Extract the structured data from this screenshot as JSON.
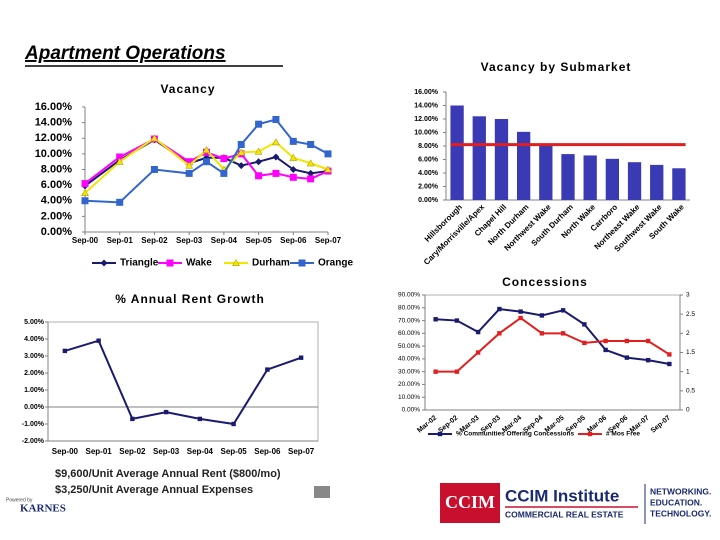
{
  "header": {
    "title": "Apartment Operations"
  },
  "chart_data": [
    {
      "type": "line",
      "title": "Vacancy",
      "x": [
        0,
        1,
        2,
        3,
        3.5,
        4,
        4.5,
        5,
        5.5,
        6,
        6.5,
        7
      ],
      "xlim": [
        0,
        7
      ],
      "xticks": [
        {
          "value": 0,
          "label": "Sep-00"
        },
        {
          "value": 1,
          "label": "Sep-01"
        },
        {
          "value": 2,
          "label": "Sep-02"
        },
        {
          "value": 3,
          "label": "Sep-03"
        },
        {
          "value": 4,
          "label": "Sep-04"
        },
        {
          "value": 5,
          "label": "Sep-05"
        },
        {
          "value": 6,
          "label": "Sep-06"
        },
        {
          "value": 7,
          "label": "Sep-07"
        }
      ],
      "ylim": [
        0,
        16
      ],
      "yticks": [
        {
          "value": 0,
          "label": "0.00%"
        },
        {
          "value": 2,
          "label": "2.00%"
        },
        {
          "value": 4,
          "label": "4.00%"
        },
        {
          "value": 6,
          "label": "6.00%"
        },
        {
          "value": 8,
          "label": "8.00%"
        },
        {
          "value": 10,
          "label": "10.00%"
        },
        {
          "value": 12,
          "label": "12.00%"
        },
        {
          "value": 14,
          "label": "14.00%"
        },
        {
          "value": 16,
          "label": "16.00%"
        }
      ],
      "series": [
        {
          "name": "Triangle",
          "color": "#1a1a6e",
          "marker": "diamond",
          "values": [
            5.9,
            9.2,
            11.8,
            8.8,
            9.5,
            9.5,
            8.5,
            9.0,
            9.6,
            8.0,
            7.5,
            7.8
          ]
        },
        {
          "name": "Wake",
          "color": "#ff00ff",
          "marker": "square",
          "values": [
            6.2,
            9.6,
            11.9,
            9.0,
            10.2,
            9.4,
            10.0,
            7.2,
            7.5,
            7.0,
            6.8,
            7.8
          ]
        },
        {
          "name": "Durham",
          "color": "#f2e600",
          "marker": "triangle",
          "values": [
            5.0,
            9.0,
            12.0,
            8.5,
            10.5,
            8.0,
            10.2,
            10.3,
            11.5,
            9.5,
            8.8,
            8.0
          ]
        },
        {
          "name": "Orange",
          "color": "#3366cc",
          "marker": "square",
          "values": [
            4.0,
            3.8,
            8.0,
            7.5,
            9.0,
            7.5,
            11.2,
            13.8,
            14.4,
            11.6,
            11.2,
            10.0
          ]
        }
      ]
    },
    {
      "type": "bar",
      "title": "Vacancy by Submarket",
      "categories": [
        "Hillsborough",
        "Cary/Morrisville/Apex",
        "Chapel Hill",
        "North Durham",
        "Northwest Wake",
        "South Durham",
        "North Wake",
        "Carrboro",
        "Northeast Wake",
        "Southwest Wake",
        "South Wake"
      ],
      "values": [
        14.0,
        12.4,
        12.0,
        10.1,
        8.1,
        6.8,
        6.6,
        6.1,
        5.6,
        5.2,
        4.7
      ],
      "color": "#3a3ab4",
      "reference_line": {
        "value": 8.2,
        "color": "#e02020"
      },
      "ylim": [
        0,
        16
      ],
      "yticks": [
        {
          "value": 0,
          "label": "0.00%"
        },
        {
          "value": 2,
          "label": "2.00%"
        },
        {
          "value": 4,
          "label": "4.00%"
        },
        {
          "value": 6,
          "label": "6.00%"
        },
        {
          "value": 8,
          "label": "8.00%"
        },
        {
          "value": 10,
          "label": "10.00%"
        },
        {
          "value": 12,
          "label": "12.00%"
        },
        {
          "value": 14,
          "label": "14.00%"
        },
        {
          "value": 16,
          "label": "16.00%"
        }
      ]
    },
    {
      "type": "line",
      "title": "% Annual Rent Growth",
      "categories": [
        "Sep-00",
        "Sep-01",
        "Sep-02",
        "Sep-03",
        "Sep-04",
        "Sep-05",
        "Sep-06",
        "Sep-07"
      ],
      "ylim": [
        -2,
        5
      ],
      "yticks": [
        {
          "value": -2,
          "label": "-2.00%"
        },
        {
          "value": -1,
          "label": "-1.00%"
        },
        {
          "value": 0,
          "label": "0.00%"
        },
        {
          "value": 1,
          "label": "1.00%"
        },
        {
          "value": 2,
          "label": "2.00%"
        },
        {
          "value": 3,
          "label": "3.00%"
        },
        {
          "value": 4,
          "label": "4.00%"
        },
        {
          "value": 5,
          "label": "5.00%"
        }
      ],
      "series": [
        {
          "color": "#1a1a6e",
          "marker": "square",
          "values": [
            3.3,
            3.9,
            -0.7,
            -0.3,
            -0.7,
            -1.0,
            2.2,
            2.9
          ]
        }
      ]
    },
    {
      "type": "line",
      "title": "Concessions",
      "categories": [
        "Mar-02",
        "Sep-02",
        "Mar-03",
        "Sep-03",
        "Mar-04",
        "Sep-04",
        "Mar-05",
        "Sep-05",
        "Mar-06",
        "Sep-06",
        "Mar-07",
        "Sep-07"
      ],
      "ylim": [
        0,
        90
      ],
      "yticks": [
        {
          "value": 0,
          "label": "0.00%"
        },
        {
          "value": 10,
          "label": "10.00%"
        },
        {
          "value": 20,
          "label": "20.00%"
        },
        {
          "value": 30,
          "label": "30.00%"
        },
        {
          "value": 40,
          "label": "40.00%"
        },
        {
          "value": 50,
          "label": "50.00%"
        },
        {
          "value": 60,
          "label": "60.00%"
        },
        {
          "value": 70,
          "label": "70.00%"
        },
        {
          "value": 80,
          "label": "80.00%"
        },
        {
          "value": 90,
          "label": "90.00%"
        }
      ],
      "y2lim": [
        0,
        3
      ],
      "y2ticks": [
        0,
        0.5,
        1,
        1.5,
        2,
        2.5,
        3
      ],
      "series": [
        {
          "name": "% Communities Offering Concessions",
          "color": "#1a1a6e",
          "marker": "square",
          "values": [
            71,
            70,
            61,
            79,
            77,
            74,
            78,
            67,
            47,
            41,
            39,
            36
          ]
        },
        {
          "name": "# Mos Free",
          "color": "#e02020",
          "marker": "square",
          "axis": "y2",
          "values": [
            1.0,
            1.0,
            1.5,
            2.0,
            2.4,
            2.0,
            2.0,
            1.75,
            1.8,
            1.8,
            1.8,
            1.45
          ]
        }
      ]
    }
  ],
  "footer": {
    "lines": [
      "$9,600/Unit Average Annual Rent ($800/mo)",
      "$3,250/Unit Average Annual Expenses"
    ],
    "powered": "Powered by",
    "karnes": "KARNES",
    "ccim": "CCIM",
    "institute": "CCIM Institute",
    "tagline": "COMMERCIAL REAL ESTATE",
    "motto": [
      "NETWORKING.",
      "EDUCATION.",
      "TECHNOLOGY."
    ]
  }
}
